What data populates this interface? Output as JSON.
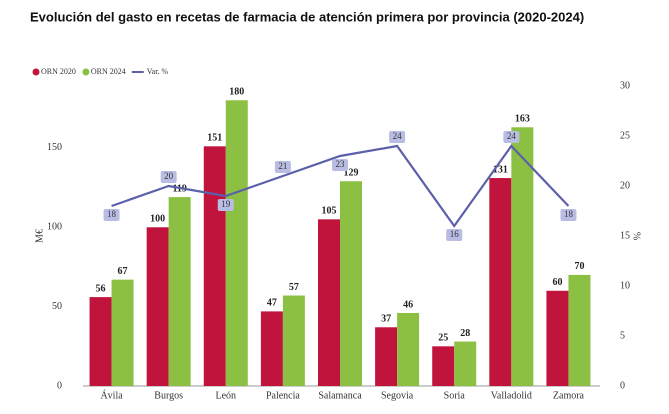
{
  "chart_data": {
    "type": "bar",
    "title": "Evolución del gasto en recetas de farmacia de atención primera por provincia (2020-2024)",
    "ylabel": "M€",
    "y2label": "%",
    "categories": [
      "Ávila",
      "Burgos",
      "León",
      "Palencia",
      "Salamanca",
      "Segovia",
      "Soria",
      "Valladolid",
      "Zamora"
    ],
    "series": [
      {
        "name": "ORN 2020",
        "color": "#c0143c",
        "type": "bar",
        "values": [
          56,
          100,
          151,
          47,
          105,
          37,
          25,
          131,
          60
        ]
      },
      {
        "name": "ORN 2024",
        "color": "#8cc043",
        "type": "bar",
        "values": [
          67,
          119,
          180,
          57,
          129,
          46,
          28,
          163,
          70
        ]
      },
      {
        "name": "Var. %",
        "color": "#5c60aa",
        "type": "line",
        "axis": "y2",
        "values": [
          18,
          20,
          19,
          21,
          23,
          24,
          16,
          24,
          18
        ]
      }
    ],
    "ylim": [
      0,
      189
    ],
    "yticks": [
      0,
      50,
      100,
      150
    ],
    "y2lim": [
      0,
      30
    ],
    "y2ticks": [
      0,
      5,
      10,
      15,
      20,
      25,
      30
    ],
    "legend": "top-left"
  }
}
